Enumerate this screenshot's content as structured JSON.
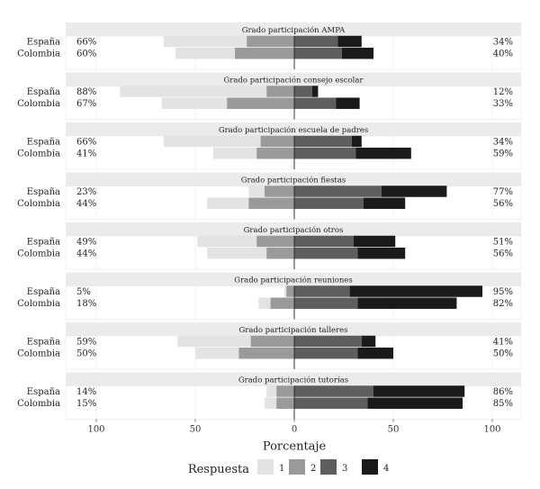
{
  "chart_data": {
    "type": "bar",
    "subtype": "diverging-stacked-likert",
    "xlabel": "Porcentaje",
    "xlim": [
      -100,
      100
    ],
    "xticks": [
      -100,
      -50,
      0,
      50,
      100
    ],
    "xtick_labels": [
      "100",
      "50",
      "0",
      "50",
      "100"
    ],
    "legend_title": "Respuesta",
    "legend": [
      {
        "label": "1",
        "color": "#e3e3e3"
      },
      {
        "label": "2",
        "color": "#9a9a9a"
      },
      {
        "label": "3",
        "color": "#5e5e5e"
      },
      {
        "label": "4",
        "color": "#1a1a1a"
      }
    ],
    "categories": [
      "España",
      "Colombia"
    ],
    "panels": [
      {
        "title": "Grado participación AMPA",
        "rows": [
          {
            "country": "España",
            "values": [
              42,
              24,
              22,
              12
            ],
            "left_label": "66%",
            "right_label": "34%"
          },
          {
            "country": "Colombia",
            "values": [
              30,
              30,
              24,
              16
            ],
            "left_label": "60%",
            "right_label": "40%"
          }
        ]
      },
      {
        "title": "Grado participación consejo escolar",
        "rows": [
          {
            "country": "España",
            "values": [
              74,
              14,
              9,
              3
            ],
            "left_label": "88%",
            "right_label": "12%"
          },
          {
            "country": "Colombia",
            "values": [
              33,
              34,
              21,
              12
            ],
            "left_label": "67%",
            "right_label": "33%"
          }
        ]
      },
      {
        "title": "Grado participación escuela de padres",
        "rows": [
          {
            "country": "España",
            "values": [
              49,
              17,
              29,
              5
            ],
            "left_label": "66%",
            "right_label": "34%"
          },
          {
            "country": "Colombia",
            "values": [
              22,
              19,
              31,
              28
            ],
            "left_label": "41%",
            "right_label": "59%"
          }
        ]
      },
      {
        "title": "Grado participación fiestas",
        "rows": [
          {
            "country": "España",
            "values": [
              8,
              15,
              44,
              33
            ],
            "left_label": "23%",
            "right_label": "77%"
          },
          {
            "country": "Colombia",
            "values": [
              21,
              23,
              35,
              21
            ],
            "left_label": "44%",
            "right_label": "56%"
          }
        ]
      },
      {
        "title": "Grado participación otros",
        "rows": [
          {
            "country": "España",
            "values": [
              30,
              19,
              30,
              21
            ],
            "left_label": "49%",
            "right_label": "51%"
          },
          {
            "country": "Colombia",
            "values": [
              30,
              14,
              32,
              24
            ],
            "left_label": "44%",
            "right_label": "56%"
          }
        ]
      },
      {
        "title": "Grado participación reuniones",
        "rows": [
          {
            "country": "España",
            "values": [
              1,
              4,
              28,
              67
            ],
            "left_label": "5%",
            "right_label": "95%"
          },
          {
            "country": "Colombia",
            "values": [
              6,
              12,
              32,
              50
            ],
            "left_label": "18%",
            "right_label": "82%"
          }
        ]
      },
      {
        "title": "Grado participación talleres",
        "rows": [
          {
            "country": "España",
            "values": [
              37,
              22,
              34,
              7
            ],
            "left_label": "59%",
            "right_label": "41%"
          },
          {
            "country": "Colombia",
            "values": [
              22,
              28,
              32,
              18
            ],
            "left_label": "50%",
            "right_label": "50%"
          }
        ]
      },
      {
        "title": "Grado participación tutorías",
        "rows": [
          {
            "country": "España",
            "values": [
              5,
              9,
              40,
              46
            ],
            "left_label": "14%",
            "right_label": "86%"
          },
          {
            "country": "Colombia",
            "values": [
              6,
              9,
              37,
              48
            ],
            "left_label": "15%",
            "right_label": "85%"
          }
        ]
      }
    ]
  }
}
